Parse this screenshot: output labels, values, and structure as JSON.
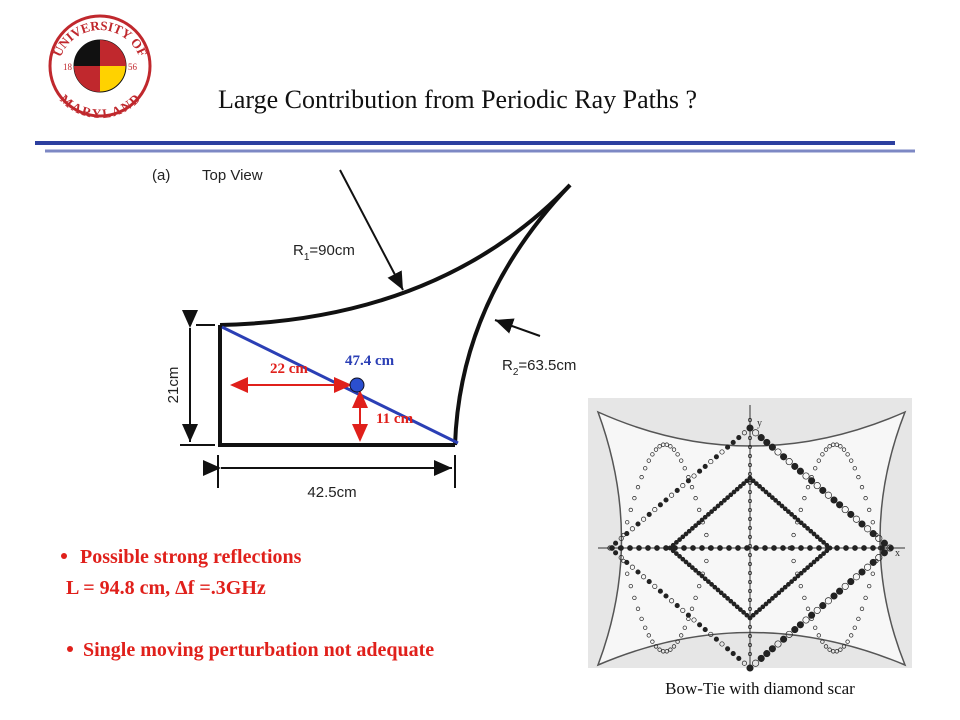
{
  "header": {
    "logo_top": "UNIVERSITY OF",
    "logo_bottom": "MARYLAND",
    "logo_year_left": "18",
    "logo_year_right": "56",
    "title": "Large Contribution from Periodic Ray Paths ?"
  },
  "diagram": {
    "panel": "(a)",
    "view": "Top View",
    "r1": {
      "base": "R",
      "sub": "1",
      "rest": "=90cm"
    },
    "r2": {
      "base": "R",
      "sub": "2",
      "rest": "=63.5cm"
    },
    "height": "21cm",
    "width": "42.5cm",
    "path_length": "47.4 cm",
    "dx": "22 cm",
    "dy": "11 cm"
  },
  "bullets": [
    "Possible strong reflections",
    "L = 94.8 cm, Δf =.3GHz",
    "Single moving perturbation not adequate"
  ],
  "figure": {
    "y_axis": "y",
    "x_axis": "x",
    "caption": "Bow-Tie with diamond scar"
  }
}
